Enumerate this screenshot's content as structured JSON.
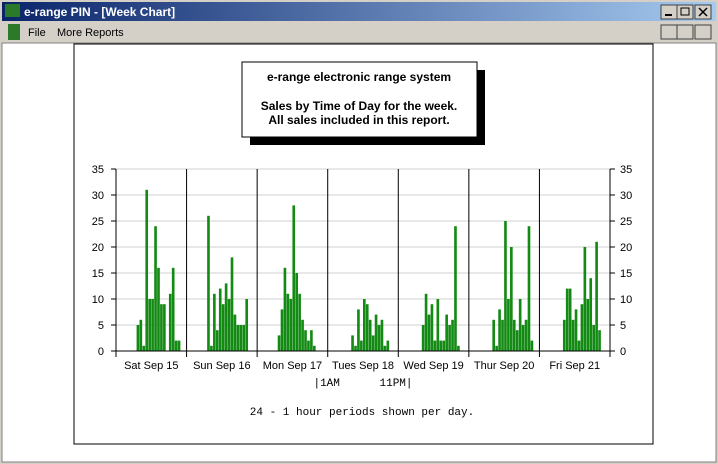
{
  "window": {
    "title": "e-range PIN - [Week Chart]"
  },
  "menu": [
    "File",
    "More Reports"
  ],
  "chart_data": {
    "type": "bar",
    "title": [
      "e-range  electronic range system",
      "Sales by Time of Day for the week.",
      "All sales included in this report."
    ],
    "categories": [
      "Sat Sep 15",
      "Sun Sep 16",
      "Mon Sep 17",
      "Tues Sep 18",
      "Wed Sep 19",
      "Thur Sep 20",
      "Fri Sep 21"
    ],
    "values": [
      [
        0,
        0,
        0,
        0,
        0,
        0,
        0,
        5,
        6,
        1,
        31,
        10,
        10,
        24,
        16,
        9,
        9,
        0,
        11,
        16,
        2,
        2,
        0,
        0
      ],
      [
        0,
        0,
        0,
        0,
        0,
        0,
        0,
        26,
        1,
        11,
        4,
        12,
        9,
        13,
        10,
        18,
        7,
        5,
        5,
        5,
        10,
        0,
        0,
        0
      ],
      [
        0,
        0,
        0,
        0,
        0,
        0,
        0,
        3,
        8,
        16,
        11,
        10,
        28,
        15,
        11,
        6,
        4,
        2,
        4,
        1,
        0,
        0,
        0,
        0
      ],
      [
        0,
        0,
        0,
        0,
        0,
        0,
        0,
        0,
        3,
        1,
        8,
        2,
        10,
        9,
        6,
        3,
        7,
        5,
        6,
        1,
        2,
        0,
        0,
        0
      ],
      [
        0,
        0,
        0,
        0,
        0,
        0,
        0,
        0,
        5,
        11,
        7,
        9,
        2,
        10,
        2,
        2,
        7,
        5,
        6,
        24,
        1,
        0,
        0,
        0
      ],
      [
        0,
        0,
        0,
        0,
        0,
        0,
        0,
        0,
        6,
        1,
        8,
        6,
        25,
        10,
        20,
        6,
        4,
        10,
        5,
        6,
        24,
        2,
        0,
        0
      ],
      [
        0,
        0,
        0,
        0,
        0,
        0,
        0,
        0,
        6,
        12,
        12,
        6,
        8,
        2,
        9,
        20,
        10,
        14,
        5,
        21,
        4,
        0,
        0,
        0
      ]
    ],
    "color": "#138a13",
    "ylim": [
      0,
      35
    ],
    "yticks": [
      0,
      5,
      10,
      15,
      20,
      25,
      30,
      35
    ],
    "y2lim": [
      0,
      35
    ],
    "y2ticks": [
      0,
      5,
      10,
      15,
      20,
      25,
      30,
      35
    ],
    "grid": true,
    "annotations": [
      "|1AM      11PM|",
      "24 - 1 hour periods shown per day."
    ]
  }
}
